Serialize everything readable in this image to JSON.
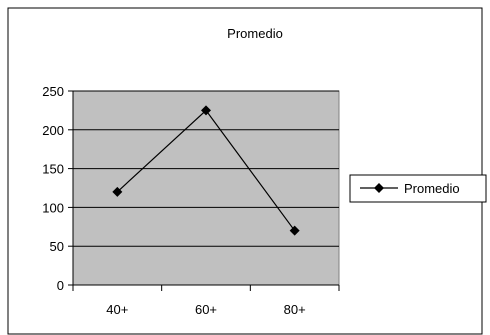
{
  "chart_data": {
    "type": "line",
    "title": "Promedio",
    "categories": [
      "40+",
      "60+",
      "80+"
    ],
    "series": [
      {
        "name": "Promedio",
        "values": [
          120,
          225,
          70
        ]
      }
    ],
    "ylim": [
      0,
      250
    ],
    "yticks": [
      "0",
      "50",
      "100",
      "150",
      "200",
      "250"
    ],
    "xlabel": "",
    "ylabel": "",
    "grid": true,
    "legend": "right",
    "colors": {
      "plot_background": "#c0c0c0",
      "gridline": "#000000",
      "series": "#000000",
      "chart_border": "#000000"
    },
    "marker": "diamond"
  }
}
